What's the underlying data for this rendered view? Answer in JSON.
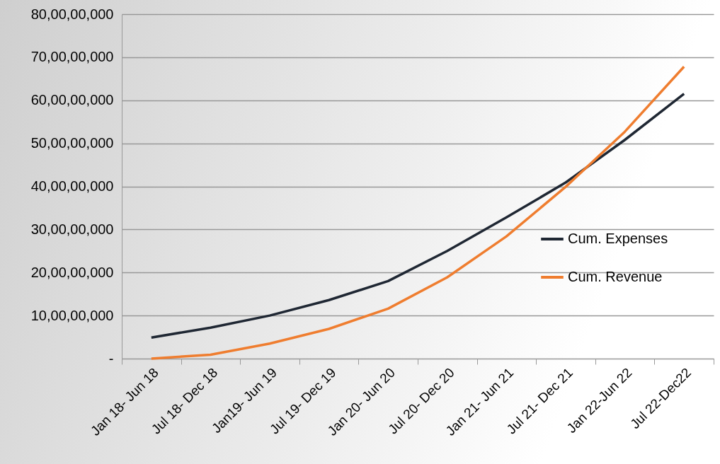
{
  "chart_data": {
    "type": "line",
    "categories": [
      "Jan 18- Jun 18",
      "Jul 18- Dec 18",
      "Jan19- Jun 19",
      "Jul 19- Dec 19",
      "Jan 20- Jun 20",
      "Jul 20- Dec 20",
      "Jan 21- Jun 21",
      "Jul 21- Dec 21",
      "Jan 22-Jun 22",
      "Jul 22-Dec22"
    ],
    "series": [
      {
        "name": "Cum. Expenses",
        "color": "#1f2733",
        "values": [
          49000000,
          72000000,
          100000000,
          136000000,
          180000000,
          250000000,
          328000000,
          409000000,
          508000000,
          615000000
        ]
      },
      {
        "name": "Cum. Revenue",
        "color": "#ef7d2f",
        "values": [
          0,
          9000000,
          35000000,
          69000000,
          116000000,
          189000000,
          284000000,
          399000000,
          527000000,
          678000000
        ]
      }
    ],
    "ylim": [
      0,
      800000000
    ],
    "yticks": [
      {
        "value": 0,
        "label": "-"
      },
      {
        "value": 100000000,
        "label": "10,00,00,000"
      },
      {
        "value": 200000000,
        "label": "20,00,00,000"
      },
      {
        "value": 300000000,
        "label": "30,00,00,000"
      },
      {
        "value": 400000000,
        "label": "40,00,00,000"
      },
      {
        "value": 500000000,
        "label": "50,00,00,000"
      },
      {
        "value": 600000000,
        "label": "60,00,00,000"
      },
      {
        "value": 700000000,
        "label": "70,00,00,000"
      },
      {
        "value": 800000000,
        "label": "80,00,00,000"
      }
    ],
    "grid": "y",
    "legend": "right",
    "marker": "none",
    "line_style": "solid"
  }
}
